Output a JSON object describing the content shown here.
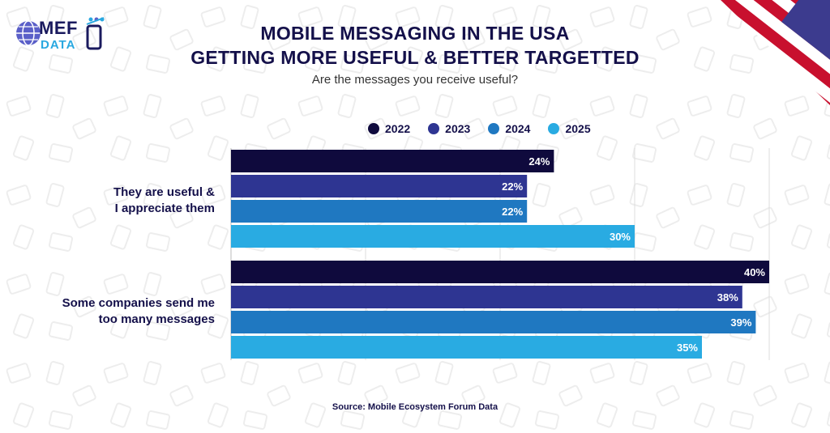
{
  "header": {
    "logo_text_top": "MEF",
    "logo_text_bottom": "DATA",
    "title_line1": "MOBILE MESSAGING IN THE USA",
    "title_line2": "GETTING MORE USEFUL & BETTER TARGETTED",
    "subtitle": "Are the messages you receive useful?"
  },
  "legend": [
    {
      "label": "2022",
      "color": "#0f0a3d"
    },
    {
      "label": "2023",
      "color": "#2e3592"
    },
    {
      "label": "2024",
      "color": "#1f78c1"
    },
    {
      "label": "2025",
      "color": "#29abe2"
    }
  ],
  "categories": [
    {
      "line1": "They are useful &",
      "line2": "I appreciate them"
    },
    {
      "line1": "Some companies send me",
      "line2": "too many messages"
    }
  ],
  "source": "Source: Mobile Ecosystem Forum Data",
  "chart_data": {
    "type": "bar",
    "orientation": "horizontal",
    "title": "MOBILE MESSAGING IN THE USA GETTING MORE USEFUL & BETTER TARGETTED",
    "subtitle": "Are the messages you receive useful?",
    "categories": [
      "They are useful & I appreciate them",
      "Some companies send me too many messages"
    ],
    "series": [
      {
        "name": "2022",
        "values": [
          24,
          40
        ],
        "labels": [
          "24%",
          "40%"
        ],
        "color": "#0f0a3d"
      },
      {
        "name": "2023",
        "values": [
          22,
          38
        ],
        "labels": [
          "22%",
          "38%"
        ],
        "color": "#2e3592"
      },
      {
        "name": "2024",
        "values": [
          22,
          39
        ],
        "labels": [
          "22%",
          "39%"
        ],
        "color": "#1f78c1"
      },
      {
        "name": "2025",
        "values": [
          30,
          35
        ],
        "labels": [
          "30%",
          "35%"
        ],
        "color": "#29abe2"
      }
    ],
    "xlim": [
      0,
      40
    ],
    "unit": "%",
    "grid": true,
    "legend_position": "top"
  }
}
